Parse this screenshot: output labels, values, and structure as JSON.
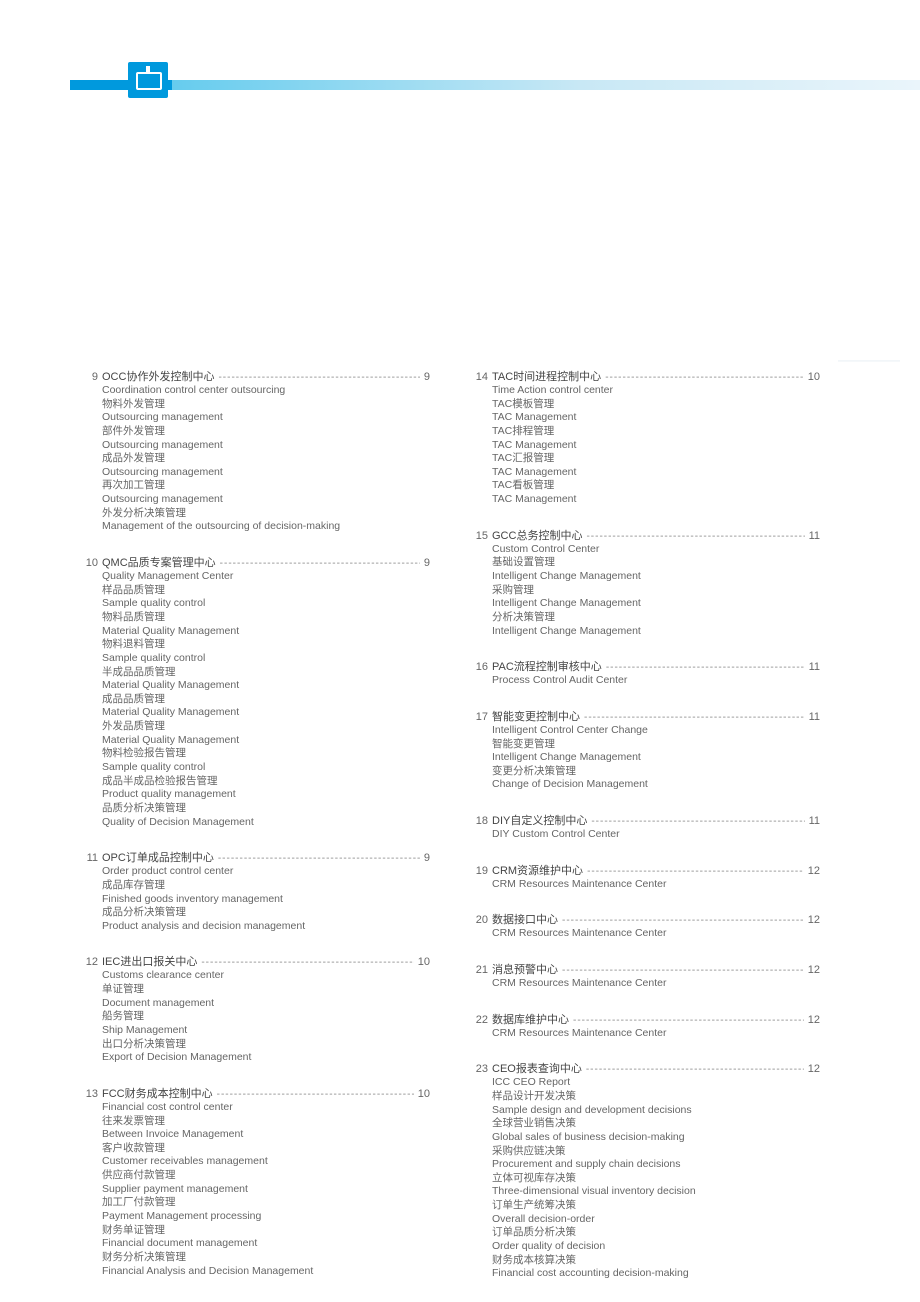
{
  "watermark_text": "INNOVISION APPAREL",
  "header_color_start": "#0099dd",
  "header_color_end": "#eaf5fb",
  "text_color": "#555555",
  "left_column": [
    {
      "num": "9",
      "title": "OCC协作外发控制中心",
      "page": "9",
      "subs": [
        "Coordination control center outsourcing",
        "物料外发管理",
        "Outsourcing management",
        "部件外发管理",
        "Outsourcing management",
        "成品外发管理",
        "Outsourcing management",
        "再次加工管理",
        "Outsourcing management",
        "外发分析决策管理",
        "Management of the outsourcing of decision-making"
      ]
    },
    {
      "num": "10",
      "title": "QMC品质专案管理中心",
      "page": "9",
      "subs": [
        "Quality Management Center",
        "样品品质管理",
        "Sample quality control",
        "物料品质管理",
        "Material Quality Management",
        "物料退料管理",
        "Sample quality control",
        "半成品品质管理",
        "Material Quality Management",
        "成品品质管理",
        "Material Quality Management",
        "外发品质管理",
        "Material Quality Management",
        "物料检验报告管理",
        "Sample quality control",
        "成品半成品检验报告管理",
        "Product quality management",
        "品质分析决策管理",
        "Quality of Decision Management"
      ]
    },
    {
      "num": "11",
      "title": "OPC订单成品控制中心",
      "page": "9",
      "subs": [
        "Order product control center",
        "成品库存管理",
        "Finished goods inventory management",
        "成品分析决策管理",
        "Product analysis and decision management"
      ]
    },
    {
      "num": "12",
      "title": "IEC进出口报关中心",
      "page": "10",
      "subs": [
        "Customs clearance center",
        "单证管理",
        "Document management",
        "船务管理",
        "Ship Management",
        "出口分析决策管理",
        "Export of Decision Management"
      ]
    },
    {
      "num": "13",
      "title": "FCC财务成本控制中心",
      "page": "10",
      "subs": [
        "Financial cost control center",
        "往来发票管理",
        "Between Invoice Management",
        "客户收款管理",
        "Customer receivables management",
        "供应商付款管理",
        "Supplier payment management",
        "加工厂付款管理",
        "Payment Management processing",
        "财务单证管理",
        "Financial document management",
        "财务分析决策管理",
        "Financial Analysis and Decision Management"
      ]
    }
  ],
  "right_column": [
    {
      "num": "14",
      "title": "TAC时间进程控制中心",
      "page": "10",
      "subs": [
        "Time Action control center",
        "TAC模板管理",
        "TAC Management",
        "TAC排程管理",
        "TAC Management",
        "TAC汇报管理",
        "TAC Management",
        "TAC看板管理",
        "TAC Management"
      ]
    },
    {
      "num": "15",
      "title": "GCC总务控制中心",
      "page": "11",
      "subs": [
        "Custom Control Center",
        "基础设置管理",
        "Intelligent Change Management",
        "采购管理",
        "Intelligent Change Management",
        "分析决策管理",
        "Intelligent Change Management"
      ]
    },
    {
      "num": "16",
      "title": "PAC流程控制审核中心",
      "page": "11",
      "subs": [
        "Process Control Audit Center"
      ]
    },
    {
      "num": "17",
      "title": "智能变更控制中心",
      "page": "11",
      "subs": [
        "Intelligent Control Center Change",
        "智能变更管理",
        "Intelligent Change Management",
        "变更分析决策管理",
        "Change of Decision Management"
      ]
    },
    {
      "num": "18",
      "title": "DIY自定义控制中心",
      "page": "11",
      "subs": [
        "DIY Custom Control Center"
      ]
    },
    {
      "num": "19",
      "title": "CRM资源维护中心",
      "page": "12",
      "subs": [
        "CRM Resources Maintenance Center"
      ]
    },
    {
      "num": "20",
      "title": "数据接口中心",
      "page": "12",
      "subs": [
        "CRM Resources Maintenance Center"
      ]
    },
    {
      "num": "21",
      "title": "消息预警中心",
      "page": "12",
      "subs": [
        "CRM Resources Maintenance Center"
      ]
    },
    {
      "num": "22",
      "title": "数据库维护中心",
      "page": "12",
      "subs": [
        "CRM Resources Maintenance Center"
      ]
    },
    {
      "num": "23",
      "title": "CEO报表查询中心",
      "page": "12",
      "subs": [
        "ICC CEO Report",
        "样品设计开发决策",
        "Sample design and development decisions",
        "全球营业销售决策",
        "Global sales of business decision-making",
        "采购供应链决策",
        "Procurement and supply chain decisions",
        "立体可视库存决策",
        "Three-dimensional visual inventory decision",
        "订单生产统筹决策",
        "Overall decision-order",
        "订单品质分析决策",
        "Order quality of decision",
        "财务成本核算决策",
        "Financial cost accounting decision-making"
      ]
    }
  ]
}
